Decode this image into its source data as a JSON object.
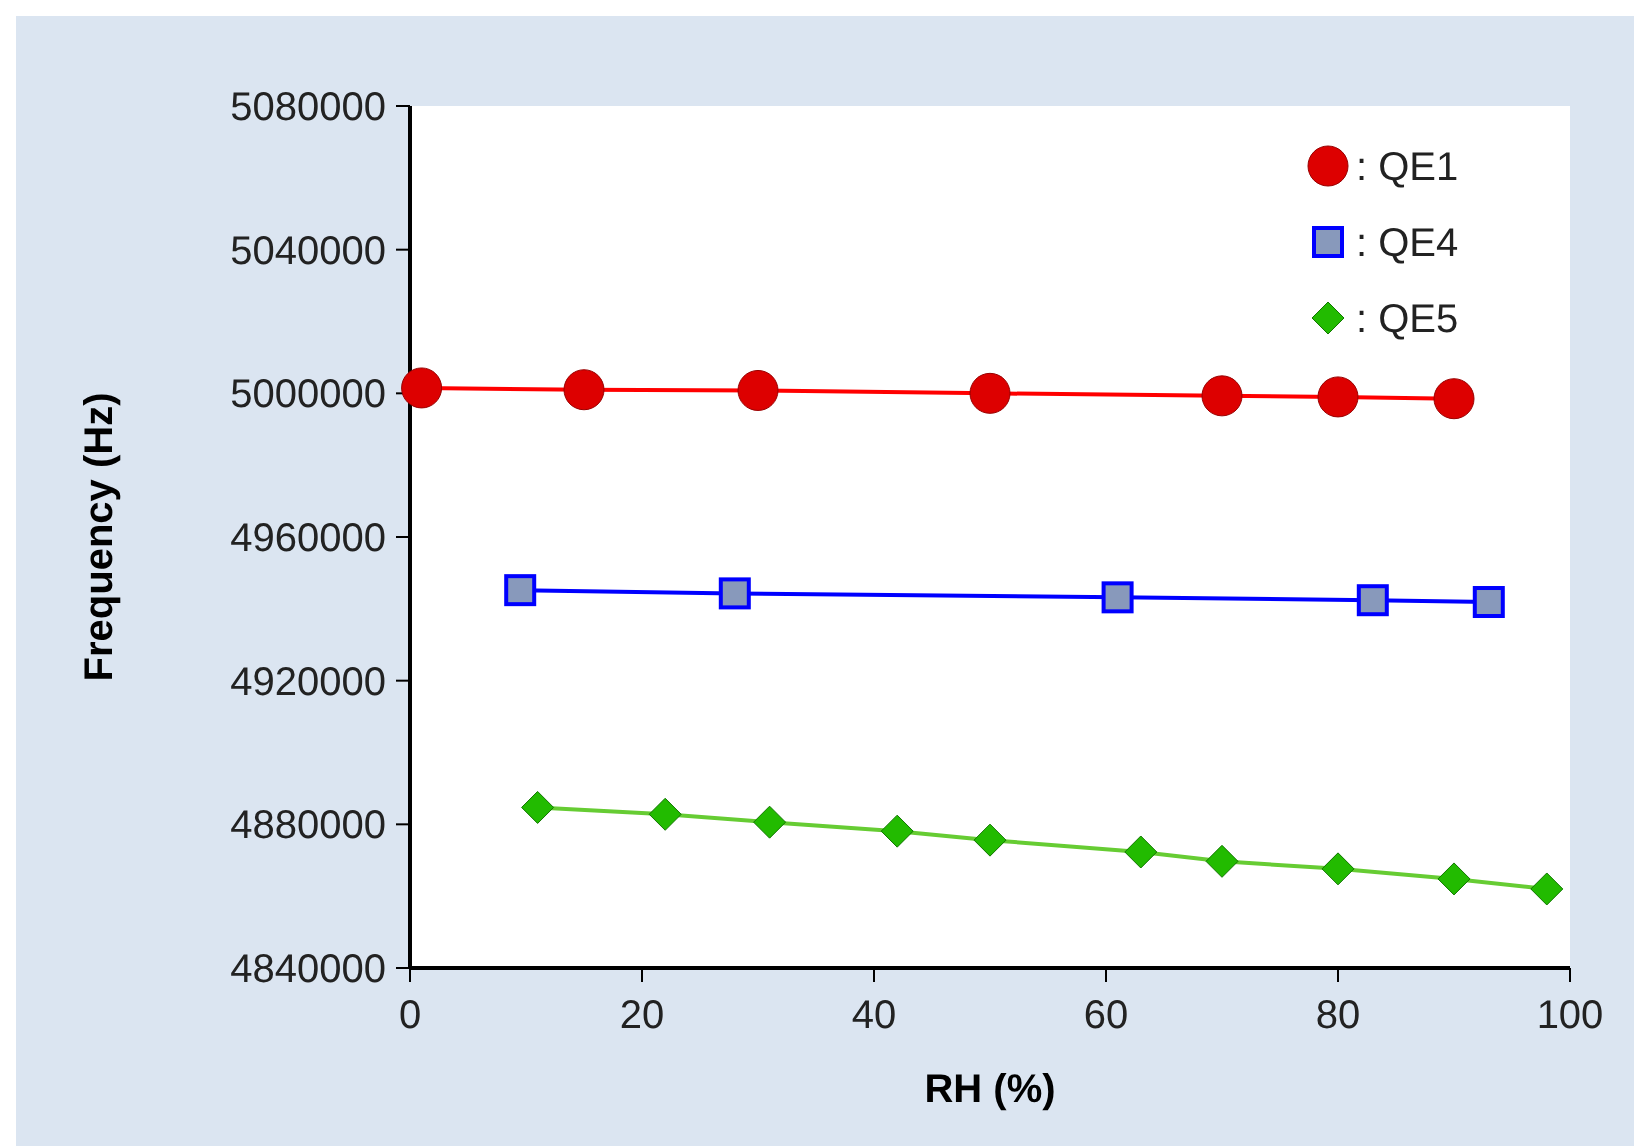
{
  "chart_data": {
    "type": "line",
    "xlabel": "RH (%)",
    "ylabel": "Frequency (Hz)",
    "xlim": [
      0,
      100
    ],
    "xticks": [
      0,
      20,
      40,
      60,
      80,
      100
    ],
    "ylim": [
      4840000,
      5080000
    ],
    "yticks": [
      4840000,
      4880000,
      4920000,
      4960000,
      5000000,
      5040000,
      5080000
    ],
    "grid": false,
    "legend": "top right",
    "line_style": "solid",
    "series": [
      {
        "name": ": QE1",
        "color": "#ff0000",
        "marker": "circle",
        "x": [
          1,
          15,
          30,
          50,
          70,
          80,
          90
        ],
        "values": [
          5001500,
          5001000,
          5000800,
          5000000,
          4999300,
          4999000,
          4998500
        ]
      },
      {
        "name": ": QE4",
        "color": "#0000ff",
        "marker": "square",
        "x": [
          9.5,
          28,
          61,
          83,
          93
        ],
        "values": [
          4945200,
          4944300,
          4943200,
          4942400,
          4941900
        ]
      },
      {
        "name": ": QE5",
        "color": "#66cc33",
        "marker": "diamond",
        "x": [
          11,
          22,
          31,
          42,
          50,
          63,
          70,
          80,
          90,
          98
        ],
        "values": [
          4884700,
          4882800,
          4880600,
          4878100,
          4875600,
          4872300,
          4869700,
          4867600,
          4864800,
          4862000
        ]
      }
    ]
  }
}
